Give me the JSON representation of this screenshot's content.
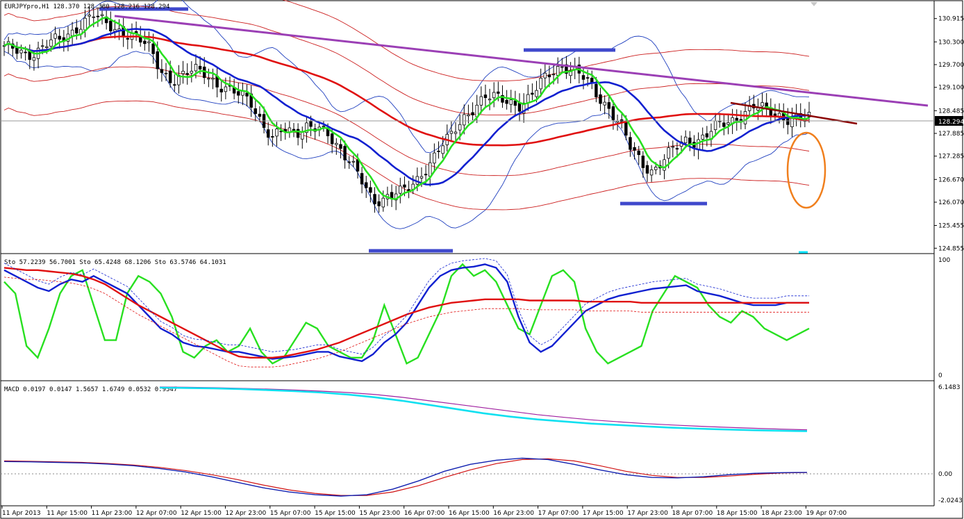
{
  "chart_data": {
    "type": "candlestick",
    "symbol_header": "EURJPYpro,H1  128.370 128.380 128.216 128.294",
    "current_price": "128.294",
    "price_axis_ticks": [
      "130.915",
      "130.300",
      "129.700",
      "129.100",
      "128.485",
      "127.885",
      "127.285",
      "126.670",
      "126.070",
      "125.455",
      "124.855"
    ],
    "price_range": [
      124.75,
      131.35
    ],
    "time_labels": [
      "11 Apr 2013",
      "11 Apr 15:00",
      "11 Apr 23:00",
      "12 Apr 07:00",
      "12 Apr 15:00",
      "12 Apr 23:00",
      "15 Apr 07:00",
      "15 Apr 15:00",
      "15 Apr 23:00",
      "16 Apr 07:00",
      "16 Apr 15:00",
      "16 Apr 23:00",
      "17 Apr 07:00",
      "17 Apr 15:00",
      "17 Apr 23:00",
      "18 Apr 07:00",
      "18 Apr 15:00",
      "18 Apr 23:00",
      "19 Apr 07:00"
    ],
    "close_path": [
      130.2,
      130.05,
      129.9,
      130.1,
      130.35,
      130.3,
      130.5,
      130.85,
      131.05,
      130.75,
      130.6,
      130.55,
      130.4,
      130.1,
      129.55,
      129.3,
      129.4,
      129.55,
      129.5,
      129.2,
      129.0,
      128.9,
      128.8,
      128.2,
      127.7,
      128.0,
      127.9,
      128.1,
      128.0,
      127.8,
      127.5,
      127.2,
      126.6,
      126.0,
      126.2,
      126.4,
      126.35,
      126.6,
      127.1,
      127.6,
      127.8,
      128.2,
      128.6,
      128.9,
      128.8,
      128.7,
      128.65,
      128.85,
      129.2,
      129.5,
      129.7,
      129.55,
      129.3,
      128.9,
      128.6,
      128.2,
      127.5,
      127.1,
      126.9,
      127.2,
      127.5,
      127.7,
      127.7,
      127.9,
      128.1,
      128.2,
      128.4,
      128.6,
      128.5,
      128.4,
      128.3,
      128.25,
      128.29
    ],
    "indicators": {
      "stochastic": {
        "label": "Sto 57.2239 56.7001  Sto 65.4248 68.1206  Sto 63.5746 64.1031",
        "scale_labels": [
          "100",
          "0"
        ],
        "fast": [
          80,
          70,
          25,
          15,
          40,
          70,
          85,
          90,
          60,
          30,
          30,
          70,
          85,
          80,
          70,
          50,
          20,
          15,
          25,
          30,
          20,
          25,
          40,
          20,
          10,
          15,
          30,
          45,
          40,
          25,
          20,
          15,
          15,
          30,
          60,
          35,
          10,
          15,
          35,
          55,
          85,
          95,
          85,
          90,
          80,
          60,
          40,
          35,
          60,
          85,
          90,
          80,
          40,
          20,
          10,
          15,
          20,
          25,
          55,
          70,
          85,
          80,
          75,
          60,
          50,
          45,
          55,
          50,
          40,
          35,
          30,
          35,
          40
        ],
        "slow": [
          90,
          85,
          80,
          75,
          72,
          78,
          82,
          80,
          85,
          80,
          75,
          70,
          60,
          50,
          40,
          35,
          28,
          25,
          24,
          22,
          20,
          20,
          18,
          16,
          14,
          15,
          16,
          18,
          20,
          20,
          16,
          14,
          12,
          18,
          28,
          35,
          45,
          60,
          75,
          85,
          90,
          92,
          93,
          95,
          92,
          80,
          50,
          28,
          20,
          25,
          35,
          45,
          55,
          60,
          65,
          68,
          70,
          72,
          74,
          75,
          76,
          77,
          72,
          70,
          68,
          65,
          62,
          60,
          60,
          60,
          62,
          62,
          62
        ],
        "long": [
          92,
          91,
          90,
          90,
          89,
          88,
          87,
          85,
          82,
          78,
          72,
          66,
          60,
          55,
          50,
          45,
          40,
          35,
          30,
          25,
          20,
          16,
          15,
          15,
          15,
          16,
          18,
          20,
          22,
          25,
          28,
          32,
          36,
          40,
          44,
          48,
          52,
          55,
          58,
          60,
          62,
          63,
          64,
          65,
          65,
          65,
          65,
          64,
          64,
          64,
          64,
          64,
          63,
          63,
          63,
          63,
          63,
          62,
          62,
          62,
          62,
          62,
          62,
          62,
          62,
          62,
          62,
          62,
          62,
          62,
          62,
          62,
          62
        ]
      },
      "macd": {
        "label": "MACD 0.0197 0.0147 1.5657 1.6749 0.0532 0.9547",
        "scale_labels": [
          "6.1483",
          "0.00",
          "-2.0243"
        ],
        "upper_cyan": [
          6.15,
          6.13,
          6.1,
          6.05,
          5.98,
          5.9,
          5.8,
          5.65,
          5.45,
          5.2,
          4.9,
          4.6,
          4.3,
          4.05,
          3.85,
          3.7,
          3.55,
          3.45,
          3.35,
          3.25,
          3.18,
          3.12,
          3.07,
          3.03,
          3.0
        ],
        "upper_magenta": [
          6.2,
          6.18,
          6.15,
          6.1,
          6.05,
          5.98,
          5.9,
          5.8,
          5.65,
          5.45,
          5.2,
          4.95,
          4.7,
          4.45,
          4.2,
          4.0,
          3.82,
          3.68,
          3.55,
          3.45,
          3.36,
          3.28,
          3.21,
          3.15,
          3.1
        ],
        "macd_blue": [
          0.8,
          0.78,
          0.74,
          0.7,
          0.62,
          0.5,
          0.3,
          0.05,
          -0.3,
          -0.7,
          -1.1,
          -1.4,
          -1.6,
          -1.7,
          -1.6,
          -1.2,
          -0.6,
          0.1,
          0.6,
          0.9,
          1.05,
          0.95,
          0.6,
          0.2,
          -0.15,
          -0.35,
          -0.38,
          -0.3,
          -0.15,
          -0.05,
          0.0,
          0.02
        ],
        "signal_red": [
          0.85,
          0.82,
          0.78,
          0.74,
          0.66,
          0.55,
          0.38,
          0.15,
          -0.15,
          -0.5,
          -0.9,
          -1.25,
          -1.5,
          -1.65,
          -1.65,
          -1.4,
          -0.95,
          -0.35,
          0.2,
          0.65,
          0.95,
          1.0,
          0.85,
          0.5,
          0.1,
          -0.2,
          -0.35,
          -0.35,
          -0.25,
          -0.12,
          -0.03,
          0.01
        ]
      }
    }
  }
}
